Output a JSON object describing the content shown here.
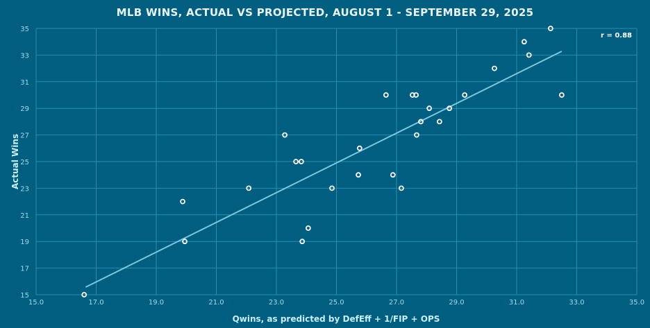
{
  "chart_data": {
    "type": "scatter",
    "title": "MLB WINS, ACTUAL VS PROJECTED, AUGUST 1 - SEPTEMBER 29, 2025",
    "xlabel": "Qwins, as predicted by DefEff + 1/FIP + OPS",
    "ylabel": "Actual Wins",
    "xlim": [
      15,
      35
    ],
    "ylim": [
      15,
      35
    ],
    "xticks": [
      "15.0",
      "17.0",
      "19.0",
      "21.0",
      "23.0",
      "25.0",
      "27.0",
      "29.0",
      "31.0",
      "33.0",
      "35.0"
    ],
    "yticks": [
      "15",
      "17",
      "19",
      "21",
      "23",
      "25",
      "27",
      "29",
      "31",
      "33",
      "35"
    ],
    "grid": true,
    "annotation": "r = 0.88",
    "points": [
      [
        16.6,
        15
      ],
      [
        19.88,
        22
      ],
      [
        19.95,
        19
      ],
      [
        22.08,
        23
      ],
      [
        23.28,
        27
      ],
      [
        23.65,
        25
      ],
      [
        23.83,
        25
      ],
      [
        23.86,
        19
      ],
      [
        24.06,
        20
      ],
      [
        24.85,
        23
      ],
      [
        25.73,
        24
      ],
      [
        25.77,
        26
      ],
      [
        26.65,
        30
      ],
      [
        26.88,
        24
      ],
      [
        27.16,
        23
      ],
      [
        27.53,
        30
      ],
      [
        27.65,
        30
      ],
      [
        27.67,
        27
      ],
      [
        27.81,
        28
      ],
      [
        28.09,
        29
      ],
      [
        28.43,
        28
      ],
      [
        28.76,
        29
      ],
      [
        29.27,
        30
      ],
      [
        30.26,
        32
      ],
      [
        31.25,
        34
      ],
      [
        31.41,
        33
      ],
      [
        32.13,
        35
      ],
      [
        32.5,
        30
      ]
    ],
    "trendline": {
      "x": [
        16.65,
        32.5
      ],
      "y": [
        15.57,
        33.28
      ]
    },
    "colors": {
      "background": "#005e80",
      "grid": "#2a8db0",
      "points": "#ffffff",
      "trendline": "#7cc6df",
      "ticks": "#9fdcf0"
    }
  }
}
